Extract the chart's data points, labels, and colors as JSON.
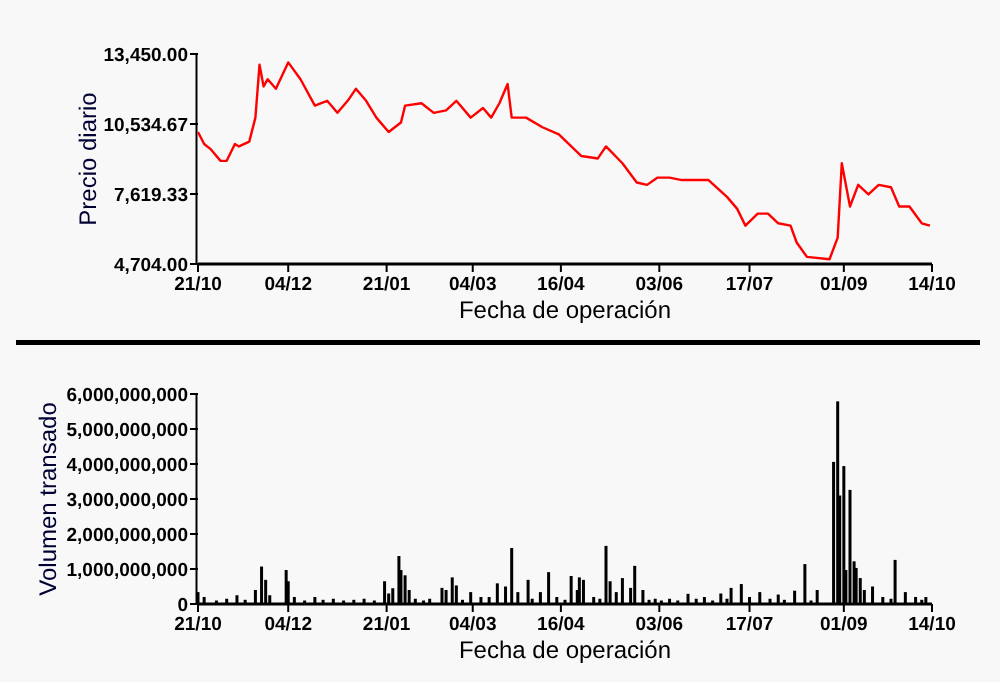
{
  "chart_data": [
    {
      "type": "line",
      "xlabel": "Fecha de operación",
      "ylabel": "Precio diario",
      "grid": false,
      "marker": "none",
      "line_style": "solid",
      "xlim": [
        "2000-10-21",
        "2001-10-14"
      ],
      "xticks": [
        {
          "value": "2000-10-21",
          "label": "21/10"
        },
        {
          "value": "2000-12-04",
          "label": "04/12"
        },
        {
          "value": "2001-01-21",
          "label": "21/01"
        },
        {
          "value": "2001-03-04",
          "label": "04/03"
        },
        {
          "value": "2001-04-16",
          "label": "16/04"
        },
        {
          "value": "2001-06-03",
          "label": "03/06"
        },
        {
          "value": "2001-07-17",
          "label": "17/07"
        },
        {
          "value": "2001-09-01",
          "label": "01/09"
        },
        {
          "value": "2001-10-14",
          "label": "14/10"
        }
      ],
      "ylim": [
        4704,
        13450
      ],
      "yticks": [
        {
          "value": 4704,
          "label": "4,704.00"
        },
        {
          "value": 7619.33,
          "label": "7,619.33"
        },
        {
          "value": 10534.67,
          "label": "10,534.67"
        },
        {
          "value": 13450,
          "label": "13,450.00"
        }
      ],
      "series": [
        {
          "color": "#ff0000",
          "x": [
            "2000-10-21",
            "2000-10-24",
            "2000-10-27",
            "2000-11-01",
            "2000-11-04",
            "2000-11-08",
            "2000-11-10",
            "2000-11-15",
            "2000-11-18",
            "2000-11-20",
            "2000-11-22",
            "2000-11-24",
            "2000-11-28",
            "2000-12-04",
            "2000-12-10",
            "2000-12-17",
            "2000-12-23",
            "2000-12-28",
            "2001-01-02",
            "2001-01-06",
            "2001-01-11",
            "2001-01-16",
            "2001-01-22",
            "2001-01-28",
            "2001-01-30",
            "2001-02-07",
            "2001-02-13",
            "2001-02-19",
            "2001-02-24",
            "2001-03-03",
            "2001-03-09",
            "2001-03-13",
            "2001-03-17",
            "2001-03-21",
            "2001-03-23",
            "2001-03-30",
            "2001-04-07",
            "2001-04-15",
            "2001-04-26",
            "2001-05-04",
            "2001-05-08",
            "2001-05-16",
            "2001-05-23",
            "2001-05-28",
            "2001-06-02",
            "2001-06-08",
            "2001-06-14",
            "2001-06-27",
            "2001-07-06",
            "2001-07-11",
            "2001-07-15",
            "2001-07-21",
            "2001-07-26",
            "2001-07-31",
            "2001-08-06",
            "2001-08-09",
            "2001-08-14",
            "2001-08-25",
            "2001-08-29",
            "2001-08-31",
            "2001-09-04",
            "2001-09-08",
            "2001-09-13",
            "2001-09-18",
            "2001-09-24",
            "2001-09-28",
            "2001-10-03",
            "2001-10-09",
            "2001-10-13"
          ],
          "values": [
            10200,
            9700,
            9500,
            9000,
            9000,
            9700,
            9600,
            9800,
            10800,
            13000,
            12100,
            12400,
            12000,
            13100,
            12400,
            11300,
            11500,
            11000,
            11500,
            12000,
            11500,
            10800,
            10200,
            10600,
            11300,
            11400,
            11000,
            11100,
            11500,
            10800,
            11200,
            10800,
            11400,
            12200,
            10800,
            10800,
            10400,
            10100,
            9200,
            9100,
            9600,
            8900,
            8100,
            8000,
            8300,
            8300,
            8200,
            8200,
            7500,
            7000,
            6300,
            6800,
            6800,
            6400,
            6300,
            5600,
            5000,
            4900,
            5800,
            8900,
            7100,
            8000,
            7600,
            8000,
            7900,
            7100,
            7100,
            6400,
            6300
          ]
        }
      ]
    },
    {
      "type": "bar",
      "xlabel": "Fecha de operación",
      "ylabel": "Volumen transado",
      "grid": false,
      "xlim": [
        "2000-10-21",
        "2001-10-14"
      ],
      "xticks": [
        {
          "value": "2000-10-21",
          "label": "21/10"
        },
        {
          "value": "2000-12-04",
          "label": "04/12"
        },
        {
          "value": "2001-01-21",
          "label": "21/01"
        },
        {
          "value": "2001-03-04",
          "label": "04/03"
        },
        {
          "value": "2001-04-16",
          "label": "16/04"
        },
        {
          "value": "2001-06-03",
          "label": "03/06"
        },
        {
          "value": "2001-07-17",
          "label": "17/07"
        },
        {
          "value": "2001-09-01",
          "label": "01/09"
        },
        {
          "value": "2001-10-14",
          "label": "14/10"
        }
      ],
      "ylim": [
        0,
        6000000000
      ],
      "yticks": [
        0,
        {
          "value": 1000000000,
          "label": "1,000,000,000"
        },
        {
          "value": 2000000000,
          "label": "2,000,000,000"
        },
        {
          "value": 3000000000,
          "label": "3,000,000,000"
        },
        {
          "value": 4000000000,
          "label": "4,000,000,000"
        },
        {
          "value": 5000000000,
          "label": "5,000,000,000"
        },
        {
          "value": 6000000000,
          "label": "6,000,000,000"
        }
      ],
      "series": [
        {
          "color": "#000000",
          "x": [
            "2000-10-21",
            "2000-10-24",
            "2000-10-30",
            "2000-11-04",
            "2000-11-09",
            "2000-11-13",
            "2000-11-18",
            "2000-11-21",
            "2000-11-23",
            "2000-11-25",
            "2000-12-03",
            "2000-12-04",
            "2000-12-07",
            "2000-12-12",
            "2000-12-17",
            "2000-12-21",
            "2000-12-26",
            "2000-12-31",
            "2001-01-05",
            "2001-01-10",
            "2001-01-15",
            "2001-01-20",
            "2001-01-22",
            "2001-01-24",
            "2001-01-27",
            "2001-01-28",
            "2001-01-30",
            "2001-02-01",
            "2001-02-04",
            "2001-02-08",
            "2001-02-11",
            "2001-02-17",
            "2001-02-19",
            "2001-02-22",
            "2001-02-24",
            "2001-02-27",
            "2001-03-03",
            "2001-03-08",
            "2001-03-12",
            "2001-03-16",
            "2001-03-20",
            "2001-03-23",
            "2001-03-26",
            "2001-03-31",
            "2001-04-02",
            "2001-04-06",
            "2001-04-10",
            "2001-04-14",
            "2001-04-18",
            "2001-04-21",
            "2001-04-24",
            "2001-04-25",
            "2001-04-27",
            "2001-05-02",
            "2001-05-05",
            "2001-05-08",
            "2001-05-10",
            "2001-05-13",
            "2001-05-16",
            "2001-05-20",
            "2001-05-22",
            "2001-05-26",
            "2001-05-29",
            "2001-06-01",
            "2001-06-04",
            "2001-06-08",
            "2001-06-12",
            "2001-06-17",
            "2001-06-21",
            "2001-06-25",
            "2001-06-29",
            "2001-07-03",
            "2001-07-06",
            "2001-07-08",
            "2001-07-13",
            "2001-07-17",
            "2001-07-22",
            "2001-07-27",
            "2001-07-31",
            "2001-08-03",
            "2001-08-08",
            "2001-08-13",
            "2001-08-16",
            "2001-08-19",
            "2001-08-27",
            "2001-08-29",
            "2001-08-30",
            "2001-09-01",
            "2001-09-02",
            "2001-09-04",
            "2001-09-06",
            "2001-09-07",
            "2001-09-09",
            "2001-09-11",
            "2001-09-15",
            "2001-09-20",
            "2001-09-24",
            "2001-09-26",
            "2001-10-01",
            "2001-10-06",
            "2001-10-09",
            "2001-10-11"
          ],
          "values": [
            340000000,
            200000000,
            100000000,
            150000000,
            250000000,
            120000000,
            400000000,
            1070000000,
            690000000,
            250000000,
            970000000,
            650000000,
            200000000,
            100000000,
            200000000,
            120000000,
            150000000,
            100000000,
            120000000,
            150000000,
            100000000,
            650000000,
            300000000,
            450000000,
            1370000000,
            970000000,
            820000000,
            400000000,
            150000000,
            100000000,
            150000000,
            460000000,
            400000000,
            760000000,
            530000000,
            120000000,
            340000000,
            200000000,
            200000000,
            590000000,
            500000000,
            1600000000,
            340000000,
            690000000,
            150000000,
            340000000,
            910000000,
            200000000,
            120000000,
            800000000,
            400000000,
            760000000,
            690000000,
            200000000,
            150000000,
            1660000000,
            650000000,
            340000000,
            740000000,
            460000000,
            1090000000,
            400000000,
            120000000,
            150000000,
            100000000,
            150000000,
            100000000,
            290000000,
            150000000,
            200000000,
            100000000,
            300000000,
            150000000,
            460000000,
            570000000,
            200000000,
            340000000,
            150000000,
            270000000,
            120000000,
            380000000,
            1140000000,
            100000000,
            400000000,
            4060000000,
            5790000000,
            3100000000,
            3940000000,
            970000000,
            3260000000,
            1220000000,
            1030000000,
            740000000,
            400000000,
            500000000,
            200000000,
            150000000,
            1260000000,
            340000000,
            200000000,
            120000000,
            200000000
          ]
        }
      ]
    }
  ]
}
